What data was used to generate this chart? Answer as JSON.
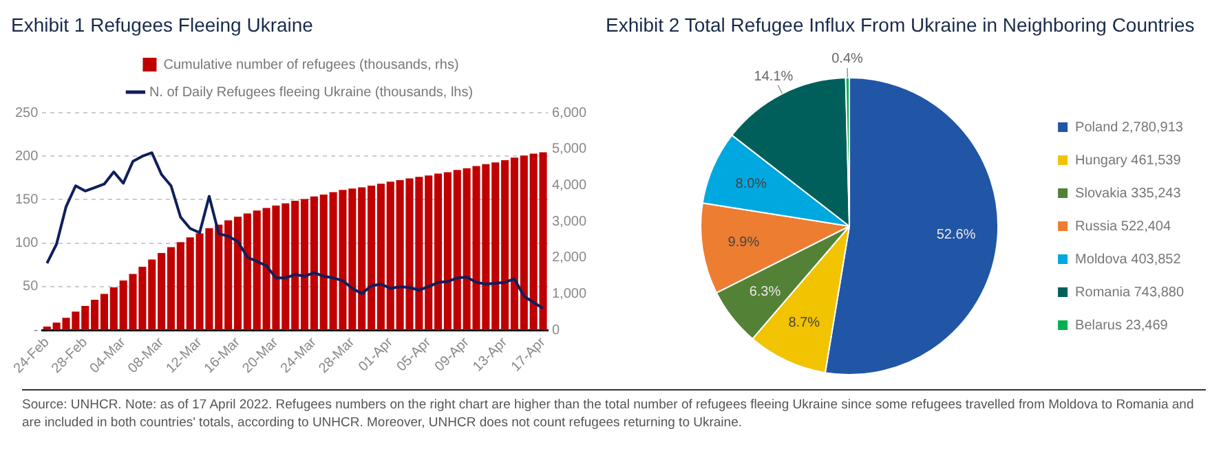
{
  "chart_data": [
    {
      "type": "bar",
      "title": "Exhibit 1 Refugees Fleeing Ukraine",
      "categories": [
        "24-Feb",
        null,
        null,
        null,
        "28-Feb",
        null,
        null,
        null,
        "04-Mar",
        null,
        null,
        null,
        "08-Mar",
        null,
        null,
        null,
        "12-Mar",
        null,
        null,
        null,
        "16-Mar",
        null,
        null,
        null,
        "20-Mar",
        null,
        null,
        null,
        "24-Mar",
        null,
        null,
        null,
        "28-Mar",
        null,
        null,
        null,
        "01-Apr",
        null,
        null,
        null,
        "05-Apr",
        null,
        null,
        null,
        "09-Apr",
        null,
        null,
        null,
        "13-Apr",
        null,
        null,
        null,
        "17-Apr"
      ],
      "series": [
        {
          "name": "Cumulative number of refugees (thousands, rhs)",
          "type": "bar",
          "axis": "y2",
          "color": "#c00000",
          "values": [
            100,
            210,
            340,
            510,
            670,
            840,
            1000,
            1180,
            1370,
            1550,
            1750,
            1950,
            2130,
            2290,
            2430,
            2560,
            2670,
            2810,
            2910,
            3030,
            3130,
            3220,
            3300,
            3370,
            3440,
            3500,
            3570,
            3620,
            3690,
            3740,
            3810,
            3870,
            3910,
            3940,
            3990,
            4040,
            4100,
            4140,
            4190,
            4230,
            4270,
            4320,
            4360,
            4420,
            4470,
            4530,
            4580,
            4630,
            4690,
            4760,
            4820,
            4870,
            4910
          ]
        },
        {
          "name": "N. of Daily Refugees fleeing Ukraine (thousands, lhs)",
          "type": "line",
          "axis": "y",
          "color": "#0f1f5c",
          "values": [
            77,
            99,
            142,
            166,
            160,
            164,
            168,
            182,
            169,
            194,
            200,
            204,
            179,
            166,
            130,
            117,
            112,
            154,
            111,
            108,
            102,
            84,
            79,
            74,
            60,
            60,
            64,
            62,
            66,
            62,
            60,
            57,
            48,
            42,
            51,
            53,
            48,
            50,
            49,
            46,
            50,
            55,
            56,
            60,
            61,
            55,
            53,
            54,
            55,
            59,
            39,
            32,
            25
          ]
        }
      ],
      "ylim": [
        0,
        250
      ],
      "yticks": [
        {
          "value": 0,
          "label": "-"
        },
        50,
        100,
        150,
        200,
        250
      ],
      "y2lim": [
        0,
        6000
      ],
      "y2ticks": [
        0,
        {
          "value": 1000,
          "label": "1,000"
        },
        {
          "value": 2000,
          "label": "2,000"
        },
        {
          "value": 3000,
          "label": "3,000"
        },
        {
          "value": 4000,
          "label": "4,000"
        },
        {
          "value": 5000,
          "label": "5,000"
        },
        {
          "value": 6000,
          "label": "6,000"
        }
      ],
      "grid": "y",
      "legend": "top",
      "marker": "none",
      "line_style": "solid",
      "annotations": [
        "Source: UNHCR. Note: as of 17 April 2022. Refugees numbers on the right chart are higher than the total number of refugees fleeing Ukraine since some refugees travelled from Moldova to Romania and are included in both countries' totals, according to UNHCR. Moreover, UNHCR does not count refugees returning to Ukraine."
      ]
    },
    {
      "type": "pie",
      "title": "Exhibit 2 Total Refugee Influx From Ukraine in Neighboring Countries",
      "categories": [
        "Poland 2,780,913",
        "Hungary 461,539",
        "Slovakia 335,243",
        "Russia 522,404",
        "Moldova 403,852",
        "Romania 743,880",
        "Belarus 23,469"
      ],
      "values": [
        52.6,
        8.7,
        6.3,
        9.9,
        8.0,
        14.1,
        0.4
      ],
      "colors": [
        "#2155a6",
        "#f2c300",
        "#538135",
        "#ed7d31",
        "#00a8e0",
        "#005f5a",
        "#00b050"
      ],
      "value_labels": [
        "52.6%",
        "8.7%",
        "6.3%",
        "9.9%",
        "8.0%",
        "14.1%",
        "0.4%"
      ],
      "legend": "right"
    }
  ]
}
